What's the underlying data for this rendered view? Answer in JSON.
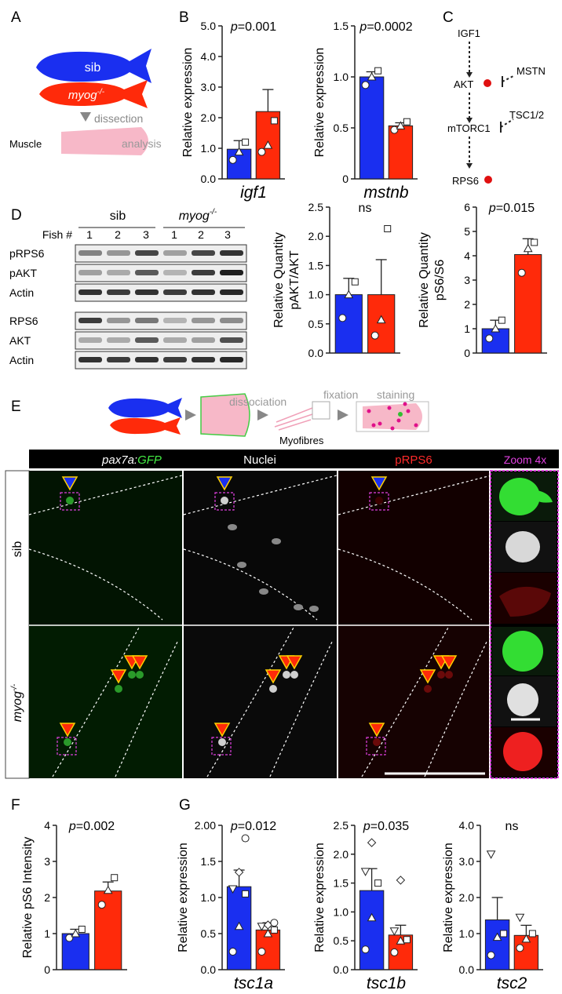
{
  "panel_letters": [
    "A",
    "B",
    "C",
    "D",
    "E",
    "F",
    "G"
  ],
  "panelA": {
    "sib": "sib",
    "myog": "myog",
    "myog_sup": "-/-",
    "dissection": "dissection",
    "muscle": "Muscle",
    "analysis": "analysis"
  },
  "panelC": {
    "nodes": [
      "IGF1",
      "AKT",
      "mTORC1",
      "RPS6"
    ],
    "inhibitors": [
      "MSTN",
      "TSC1/2"
    ]
  },
  "panelD_blot": {
    "groups": [
      "sib",
      "myog"
    ],
    "myog_sup": "-/-",
    "fish_label": "Fish #",
    "fish_numbers": [
      "1",
      "2",
      "3",
      "1",
      "2",
      "3"
    ],
    "rows_top": [
      "pRPS6",
      "pAKT",
      "Actin"
    ],
    "rows_bottom": [
      "RPS6",
      "AKT",
      "Actin"
    ]
  },
  "panelE": {
    "diagram": {
      "dissociation": "dissociation",
      "fixation": "fixation",
      "staining": "staining",
      "myofibres": "Myofibres"
    },
    "headers": {
      "pax7a": "pax7a:",
      "gfp": "GFP",
      "nuclei": "Nuclei",
      "prps6": "pRPS6",
      "zoom": "Zoom 4x"
    },
    "rows": [
      "sib",
      "myog"
    ],
    "myog_sup": "-/-"
  },
  "colors": {
    "sib": "#1a2ff0",
    "myog": "#ff2a0a",
    "pink": "#e060e0"
  },
  "chart_data": [
    {
      "id": "B1",
      "type": "bar",
      "categories": [
        "sib",
        "myog-/-"
      ],
      "values": [
        0.97,
        2.2
      ],
      "errors": [
        0.28,
        0.72
      ],
      "points": [
        [
          0.62,
          0.88,
          1.2
        ],
        [
          0.88,
          1.1,
          1.9
        ]
      ],
      "markers": [
        "o",
        "triangle",
        "square"
      ],
      "ylabel": "Relative expression",
      "xlabel": "igf1",
      "ylim": [
        0,
        5
      ],
      "yticks": [
        "0.0",
        "1.0",
        "2.0",
        "3.0",
        "4.0",
        "5.0"
      ],
      "ptext": "p",
      "pvalue": "=0.001",
      "annotation": {
        "x": 75,
        "y": [
          3.27
        ]
      }
    },
    {
      "id": "B2",
      "type": "bar",
      "categories": [
        "sib",
        "myog-/-"
      ],
      "values": [
        1.0,
        0.52
      ],
      "errors": [
        0.05,
        0.03
      ],
      "points": [
        [
          0.92,
          1.0,
          1.06
        ],
        [
          0.48,
          0.52,
          0.56
        ]
      ],
      "ylabel": "Relative expression",
      "xlabel": "mstnb",
      "ylim": [
        0,
        1.5
      ],
      "yticks": [
        "0",
        "0.5",
        "1.0",
        "1.5"
      ],
      "ptext": "p",
      "pvalue": "=0.0002"
    },
    {
      "id": "D1",
      "type": "bar",
      "categories": [
        "sib",
        "myog-/-"
      ],
      "values": [
        1.0,
        1.0
      ],
      "errors": [
        0.28,
        0.6
      ],
      "points": [
        [
          0.6,
          1.0,
          1.22
        ],
        [
          0.3,
          0.57,
          2.13
        ]
      ],
      "ylabel": "Relative Quantity",
      "ylabel2": "pAKT/AKT",
      "ylim": [
        0,
        2.5
      ],
      "yticks": [
        "0.0",
        "0.5",
        "1.0",
        "1.5",
        "2.0",
        "2.5"
      ],
      "ptext": "ns"
    },
    {
      "id": "D2",
      "type": "bar",
      "categories": [
        "sib",
        "myog-/-"
      ],
      "values": [
        1.0,
        4.05
      ],
      "errors": [
        0.35,
        0.65
      ],
      "points": [
        [
          0.6,
          1.0,
          1.35
        ],
        [
          3.3,
          4.3,
          4.55
        ]
      ],
      "ylabel": "Relative Quantity",
      "ylabel2": "pS6/S6",
      "ylim": [
        0,
        6
      ],
      "yticks": [
        "0",
        "1",
        "2",
        "3",
        "4",
        "5",
        "6"
      ],
      "ptext": "p",
      "pvalue": "=0.015"
    },
    {
      "id": "F",
      "type": "bar",
      "categories": [
        "sib",
        "myog-/-"
      ],
      "values": [
        1.0,
        2.18
      ],
      "errors": [
        0.12,
        0.25
      ],
      "points": [
        [
          0.88,
          1.0,
          1.12
        ],
        [
          1.8,
          2.2,
          2.55
        ]
      ],
      "ylabel": "Relative pS6 Intensity",
      "ylim": [
        0,
        4
      ],
      "yticks": [
        "0",
        "1",
        "2",
        "3",
        "4"
      ],
      "ptext": "p",
      "pvalue": "=0.002"
    },
    {
      "id": "G1",
      "type": "bar",
      "categories": [
        "sib",
        "myog-/-"
      ],
      "values": [
        1.15,
        0.55
      ],
      "errors": [
        0.23,
        0.1
      ],
      "points": [
        [
          0.25,
          0.6,
          1.05,
          1.12,
          1.35,
          1.82
        ],
        [
          0.25,
          0.5,
          0.55,
          0.6,
          0.62,
          0.65
        ]
      ],
      "ylabel": "Relative expression",
      "xlabel": "tsc1a",
      "ylim": [
        0,
        2
      ],
      "yticks": [
        "0.0",
        "0.5",
        "1.0",
        "1.5",
        "2.00"
      ],
      "ptext": "p",
      "pvalue": "=0.012"
    },
    {
      "id": "G2",
      "type": "bar",
      "categories": [
        "sib",
        "myog-/-"
      ],
      "values": [
        1.37,
        0.6
      ],
      "errors": [
        0.38,
        0.17
      ],
      "points": [
        [
          0.35,
          0.9,
          1.5,
          1.7,
          2.2
        ],
        [
          0.3,
          0.5,
          0.52,
          0.67,
          1.55
        ]
      ],
      "ylabel": "Relative expression",
      "xlabel": "tsc1b",
      "ylim": [
        0,
        2.5
      ],
      "yticks": [
        "0.0",
        "0.5",
        "1.0",
        "1.5",
        "2.0",
        "2.5"
      ],
      "ptext": "p",
      "pvalue": "=0.035"
    },
    {
      "id": "G3",
      "type": "bar",
      "categories": [
        "sib",
        "myog-/-"
      ],
      "values": [
        1.38,
        0.95
      ],
      "errors": [
        0.62,
        0.28
      ],
      "points": [
        [
          0.4,
          0.9,
          1.0,
          3.2
        ],
        [
          0.6,
          0.85,
          1.0,
          1.45
        ]
      ],
      "ylabel": "Relative expression",
      "xlabel": "tsc2",
      "ylim": [
        0,
        4
      ],
      "yticks": [
        "0.0",
        "1.0",
        "2.0",
        "3.0",
        "4.0"
      ],
      "ptext": "ns"
    }
  ]
}
